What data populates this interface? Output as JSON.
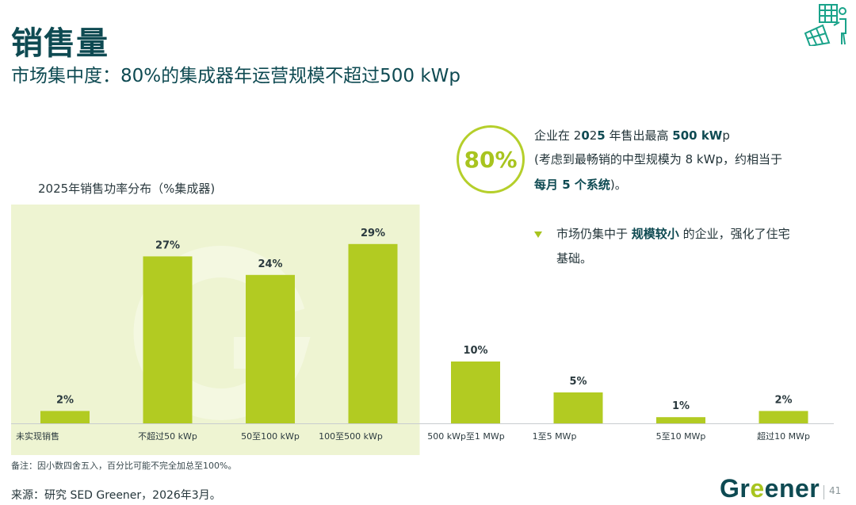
{
  "header": {
    "title": "销售量",
    "subtitle": "市场集中度：80%的集成器年运营规模不超过500 kWp"
  },
  "chart_data": {
    "type": "bar",
    "title": "2025年销售功率分布（%集成器)",
    "categories": [
      "未实现销售",
      "不超过50 kWp",
      "50至100 kWp",
      "100至500 kWp",
      "500 kWp至1 MWp",
      "1至5 MWp",
      "5至10 MWp",
      "超过10 MWp"
    ],
    "values": [
      2,
      27,
      24,
      29,
      10,
      5,
      1,
      2
    ],
    "value_labels": [
      "2%",
      "27%",
      "24%",
      "29%",
      "10%",
      "5%",
      "1%",
      "2%"
    ],
    "unit": "%",
    "ylim": [
      0,
      30
    ],
    "highlight_categories": [
      "未实现销售",
      "不超过50 kWp",
      "50至100 kWp",
      "100至500 kWp"
    ],
    "bar_color": "#b2cb22",
    "highlight_bg_color": "#eef4d2",
    "grid": false
  },
  "callout": {
    "stat": "80%",
    "line1_a": "企业在 2",
    "line1_b": "0",
    "line1_c": "2",
    "line1_d": "5",
    "line1_e": " 年售出最高 ",
    "line1_f": "500 kW",
    "line1_g": "p",
    "line2": "(考虑到最畅销的中型规模为 8 kWp，约相当于",
    "line3_bold": "每月 5 个系统",
    "line3_end": ")。"
  },
  "bullet": {
    "icon": "triangle-down-icon",
    "pre": "市场仍集中于 ",
    "bold": "规模较小",
    "post": " 的企业，强化了住宅",
    "line2": "基础。"
  },
  "footer": {
    "footnote": "备注：因小数四舍五入，百分比可能不完全加总至100%。",
    "source": "来源：研究 SED Greener，2026年3月。",
    "brand_pre": "Gr",
    "brand_e": "e",
    "brand_post": "ener",
    "page_number": "41"
  },
  "colors": {
    "title": "#0e4a52",
    "accent": "#a8c41f"
  }
}
